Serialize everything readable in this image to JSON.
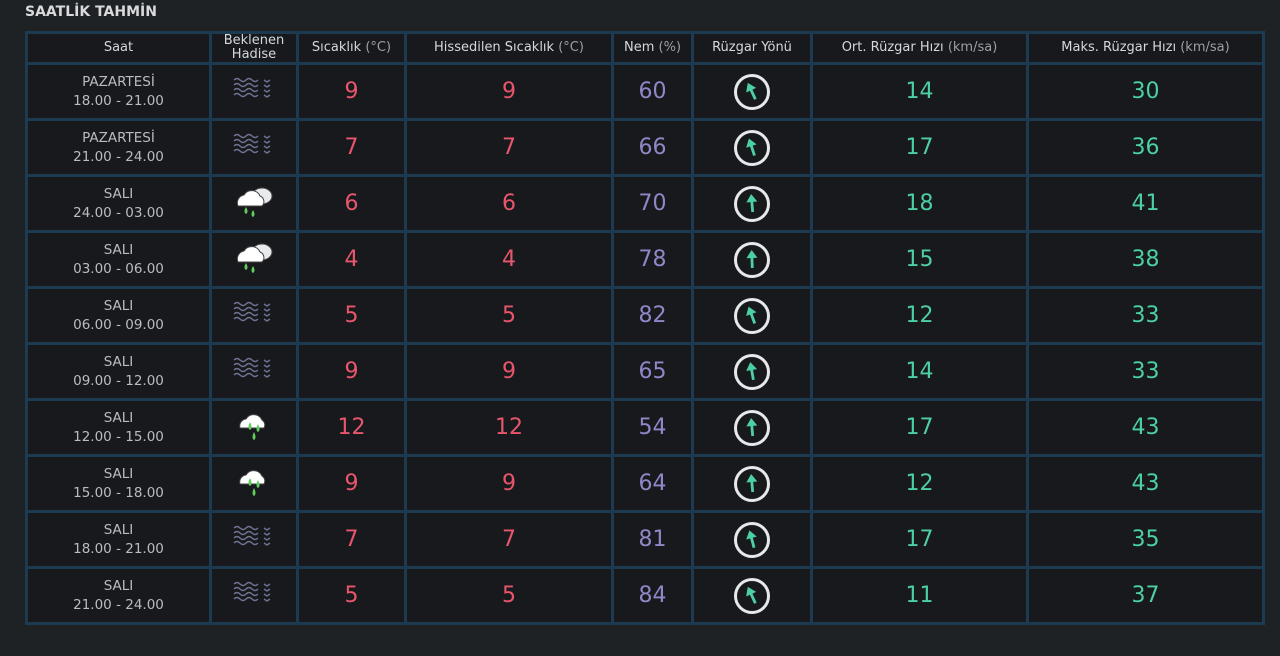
{
  "title": "SAATLİK TAHMİN",
  "headers": {
    "saat": "Saat",
    "hadise": "Beklenen Hadise",
    "sicaklik": "Sıcaklık",
    "sicaklik_unit": "(°C)",
    "hissedilen": "Hissedilen Sıcaklık",
    "hissedilen_unit": "(°C)",
    "nem": "Nem",
    "nem_unit": "(%)",
    "yon": "Rüzgar Yönü",
    "ort": "Ort. Rüzgar Hızı",
    "ort_unit": "(km/sa)",
    "maks": "Maks. Rüzgar Hızı",
    "maks_unit": "(km/sa)"
  },
  "colors": {
    "temp": "#e8566c",
    "humidity": "#8f88c8",
    "wind": "#4ccfa3",
    "border": "#1c3a50"
  },
  "rows": [
    {
      "day": "PAZARTESİ",
      "time": "18.00 - 21.00",
      "icon": "fog-icon",
      "temp": "9",
      "feels": "9",
      "humidity": "60",
      "wind_dir_deg": -25,
      "avg": "14",
      "max": "30"
    },
    {
      "day": "PAZARTESİ",
      "time": "21.00 - 24.00",
      "icon": "fog-icon",
      "temp": "7",
      "feels": "7",
      "humidity": "66",
      "wind_dir_deg": -18,
      "avg": "17",
      "max": "36"
    },
    {
      "day": "SALI",
      "time": "24.00 - 03.00",
      "icon": "rain-cloudy-icon",
      "temp": "6",
      "feels": "6",
      "humidity": "70",
      "wind_dir_deg": -5,
      "avg": "18",
      "max": "41"
    },
    {
      "day": "SALI",
      "time": "03.00 - 06.00",
      "icon": "rain-cloudy-icon",
      "temp": "4",
      "feels": "4",
      "humidity": "78",
      "wind_dir_deg": -2,
      "avg": "15",
      "max": "38"
    },
    {
      "day": "SALI",
      "time": "06.00 - 09.00",
      "icon": "fog-icon",
      "temp": "5",
      "feels": "5",
      "humidity": "82",
      "wind_dir_deg": -20,
      "avg": "12",
      "max": "33"
    },
    {
      "day": "SALI",
      "time": "09.00 - 12.00",
      "icon": "fog-icon",
      "temp": "9",
      "feels": "9",
      "humidity": "65",
      "wind_dir_deg": -10,
      "avg": "14",
      "max": "33"
    },
    {
      "day": "SALI",
      "time": "12.00 - 15.00",
      "icon": "rain-icon",
      "temp": "12",
      "feels": "12",
      "humidity": "54",
      "wind_dir_deg": -5,
      "avg": "17",
      "max": "43"
    },
    {
      "day": "SALI",
      "time": "15.00 - 18.00",
      "icon": "rain-icon",
      "temp": "9",
      "feels": "9",
      "humidity": "64",
      "wind_dir_deg": -5,
      "avg": "12",
      "max": "43"
    },
    {
      "day": "SALI",
      "time": "18.00 - 21.00",
      "icon": "fog-icon",
      "temp": "7",
      "feels": "7",
      "humidity": "81",
      "wind_dir_deg": -15,
      "avg": "17",
      "max": "35"
    },
    {
      "day": "SALI",
      "time": "21.00 - 24.00",
      "icon": "fog-icon",
      "temp": "5",
      "feels": "5",
      "humidity": "84",
      "wind_dir_deg": -25,
      "avg": "11",
      "max": "37"
    }
  ]
}
